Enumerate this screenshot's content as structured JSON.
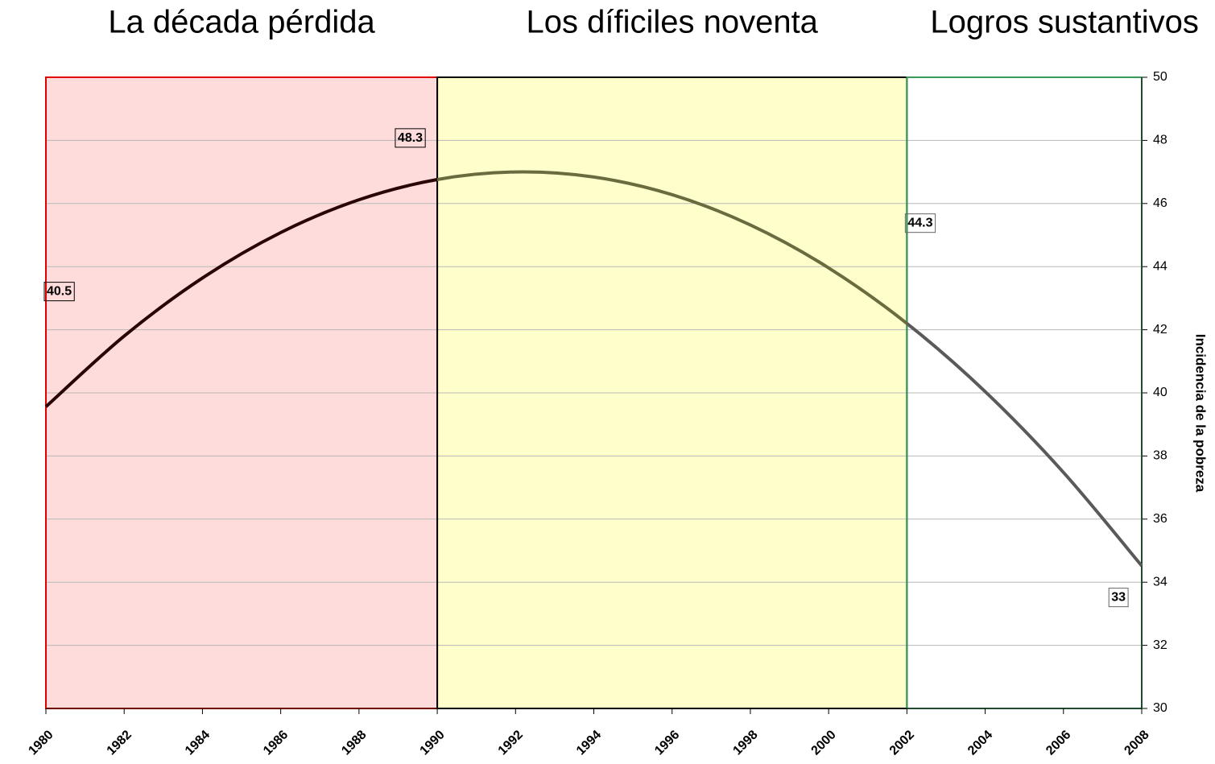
{
  "chart_data": {
    "type": "line",
    "periods": [
      {
        "name": "La década pérdida",
        "start": 1980,
        "end": 1990,
        "fill": "#ffdcdc",
        "border": "#e00000",
        "line_color": "#2a0505"
      },
      {
        "name": "Los díficiles noventa",
        "start": 1990,
        "end": 2002,
        "fill": "#ffffcc",
        "border": "#000000",
        "line_color": "#6b6b40"
      },
      {
        "name": "Logros sustantivos",
        "start": 2002,
        "end": 2008,
        "fill": "#ffffff",
        "border": "#3a9a5a",
        "line_color": "#5a5a5a"
      }
    ],
    "x": [
      1980,
      1982,
      1984,
      1986,
      1988,
      1990,
      1992,
      1994,
      1996,
      1998,
      2000,
      2002,
      2004,
      2006,
      2008
    ],
    "series": [
      {
        "values": [
          39.56,
          41.8,
          43.64,
          45.08,
          46.12,
          46.76,
          47.0,
          46.84,
          46.28,
          45.32,
          43.96,
          42.2,
          40.04,
          37.48,
          34.52
        ]
      }
    ],
    "annotations": [
      {
        "x": 1980,
        "value": 40.5,
        "color": "#000000"
      },
      {
        "x": 1990,
        "value": 48.3,
        "color": "#000000"
      },
      {
        "x": 2002,
        "value": 44.3,
        "color": "#666666"
      },
      {
        "x": 2008,
        "value": 33,
        "color": "#666666"
      }
    ],
    "y_label": "Incidencia de la pobreza",
    "xlim": [
      1980,
      2008
    ],
    "xticks": [
      1980,
      1982,
      1984,
      1986,
      1988,
      1990,
      1992,
      1994,
      1996,
      1998,
      2000,
      2002,
      2004,
      2006,
      2008
    ],
    "ylim": [
      30,
      50
    ],
    "yticks": [
      30,
      32,
      34,
      36,
      38,
      40,
      42,
      44,
      46,
      48,
      50
    ],
    "grid": true
  }
}
